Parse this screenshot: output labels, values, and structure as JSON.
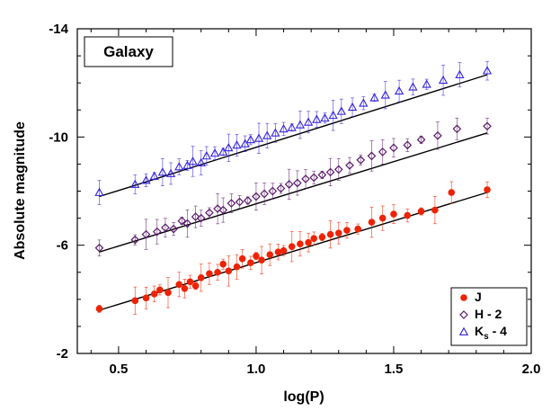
{
  "chart_data": {
    "type": "scatter",
    "panel_label": "Galaxy",
    "xlabel": "log(P)",
    "ylabel": "Absolute magnitude",
    "xlim": [
      0.35,
      2.0
    ],
    "ylim": [
      -2,
      -14
    ],
    "y_axis_inverted": true,
    "x_ticks": [
      "0.5",
      "1.0",
      "1.5",
      "2.0"
    ],
    "x_tick_values": [
      0.5,
      1.0,
      1.5,
      2.0
    ],
    "y_ticks": [
      "-14",
      "-10",
      "-6",
      "-2"
    ],
    "y_tick_values": [
      -14,
      -10,
      -6,
      -2
    ],
    "grid": false,
    "legend_placement": "bottom-right",
    "series": [
      {
        "name": "J",
        "legend_main": "J",
        "legend_sub": "",
        "legend_suffix": "",
        "marker": "filled-circle",
        "color": "#ee2200",
        "fit_line": {
          "x": [
            0.43,
            1.84
          ],
          "y": [
            -3.6,
            -7.95
          ]
        },
        "x": [
          0.43,
          0.56,
          0.6,
          0.63,
          0.65,
          0.68,
          0.72,
          0.74,
          0.76,
          0.78,
          0.8,
          0.83,
          0.86,
          0.88,
          0.9,
          0.93,
          0.95,
          0.98,
          1.0,
          1.02,
          1.05,
          1.08,
          1.1,
          1.13,
          1.16,
          1.19,
          1.21,
          1.24,
          1.27,
          1.3,
          1.33,
          1.37,
          1.42,
          1.46,
          1.5,
          1.55,
          1.6,
          1.65,
          1.71,
          1.84
        ],
        "y": [
          -3.65,
          -3.95,
          -4.05,
          -4.2,
          -4.35,
          -4.25,
          -4.55,
          -4.4,
          -4.65,
          -4.5,
          -4.8,
          -4.95,
          -5.0,
          -5.3,
          -5.05,
          -5.2,
          -5.5,
          -5.35,
          -5.6,
          -5.45,
          -5.65,
          -5.75,
          -5.8,
          -5.95,
          -6.05,
          -6.1,
          -6.25,
          -6.3,
          -6.4,
          -6.45,
          -6.55,
          -6.6,
          -6.85,
          -7.0,
          -7.15,
          -7.1,
          -7.25,
          -7.3,
          -7.95,
          -8.05
        ]
      },
      {
        "name": "H - 2",
        "legend_main": "H - 2",
        "legend_sub": "",
        "legend_suffix": "",
        "marker": "open-diamond",
        "color": "#5a1a6a",
        "fit_line": {
          "x": [
            0.43,
            1.84
          ],
          "y": [
            -5.75,
            -10.15
          ]
        },
        "x": [
          0.43,
          0.56,
          0.6,
          0.64,
          0.67,
          0.7,
          0.73,
          0.75,
          0.78,
          0.8,
          0.83,
          0.86,
          0.88,
          0.91,
          0.94,
          0.97,
          1.0,
          1.03,
          1.06,
          1.09,
          1.12,
          1.15,
          1.18,
          1.21,
          1.24,
          1.27,
          1.3,
          1.34,
          1.38,
          1.42,
          1.46,
          1.5,
          1.55,
          1.6,
          1.66,
          1.73,
          1.84
        ],
        "y": [
          -5.9,
          -6.2,
          -6.4,
          -6.5,
          -6.65,
          -6.6,
          -6.9,
          -6.8,
          -7.05,
          -7.0,
          -7.2,
          -7.35,
          -7.3,
          -7.55,
          -7.6,
          -7.65,
          -7.8,
          -7.9,
          -8.0,
          -8.1,
          -8.25,
          -8.3,
          -8.45,
          -8.5,
          -8.6,
          -8.7,
          -8.8,
          -8.95,
          -9.15,
          -9.3,
          -9.45,
          -9.6,
          -9.7,
          -9.9,
          -10.05,
          -10.3,
          -10.4
        ]
      },
      {
        "name": "Ks - 4",
        "legend_main": "K",
        "legend_sub": "s",
        "legend_suffix": " - 4",
        "marker": "open-triangle",
        "color": "#3322dd",
        "fit_line": {
          "x": [
            0.43,
            1.84
          ],
          "y": [
            -7.8,
            -12.3
          ]
        },
        "x": [
          0.43,
          0.56,
          0.6,
          0.63,
          0.66,
          0.69,
          0.72,
          0.75,
          0.77,
          0.8,
          0.82,
          0.85,
          0.88,
          0.9,
          0.93,
          0.96,
          0.98,
          1.01,
          1.04,
          1.07,
          1.1,
          1.13,
          1.16,
          1.19,
          1.22,
          1.25,
          1.28,
          1.31,
          1.35,
          1.39,
          1.43,
          1.47,
          1.52,
          1.57,
          1.62,
          1.68,
          1.74,
          1.84
        ],
        "y": [
          -7.95,
          -8.25,
          -8.4,
          -8.55,
          -8.7,
          -8.65,
          -8.9,
          -8.95,
          -9.1,
          -9.05,
          -9.3,
          -9.4,
          -9.45,
          -9.6,
          -9.7,
          -9.75,
          -9.9,
          -9.95,
          -10.05,
          -10.15,
          -10.3,
          -10.35,
          -10.45,
          -10.55,
          -10.65,
          -10.7,
          -10.8,
          -10.95,
          -11.1,
          -11.25,
          -11.45,
          -11.55,
          -11.7,
          -11.85,
          -11.95,
          -12.1,
          -12.3,
          -12.45
        ]
      }
    ]
  }
}
